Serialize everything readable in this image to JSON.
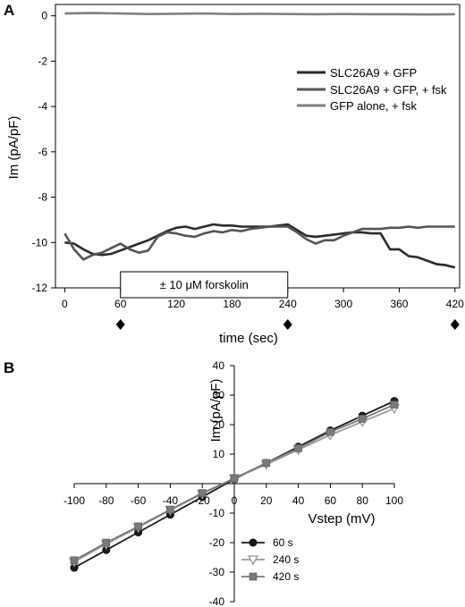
{
  "chart_data": [
    {
      "panel_label": "A",
      "type": "line",
      "xlabel": "time (sec)",
      "ylabel": "Im (pA/pF)",
      "xlim": [
        -10,
        425
      ],
      "ylim": [
        -12,
        0.5
      ],
      "xticks": [
        0,
        60,
        120,
        180,
        240,
        300,
        360,
        420
      ],
      "xtick_labels": [
        "0",
        "60",
        "120",
        "180",
        "240",
        "300",
        "360",
        "420"
      ],
      "yticks": [
        0,
        -2,
        -4,
        -6,
        -8,
        -10,
        -12
      ],
      "ytick_labels": [
        "0",
        "-2",
        "-4",
        "-6",
        "-8",
        "-10",
        "-12"
      ],
      "marker_times": [
        60,
        240,
        420
      ],
      "forskolin_bar": {
        "label": "± 10 μM forskolin",
        "x_start": 60,
        "x_end": 240
      },
      "legend_position": "right",
      "series": [
        {
          "name": "SLC26A9 + GFP",
          "color": "#2b2b2b",
          "x": [
            0,
            10,
            20,
            30,
            40,
            50,
            60,
            70,
            80,
            90,
            100,
            110,
            120,
            130,
            140,
            150,
            160,
            170,
            180,
            190,
            200,
            210,
            220,
            230,
            240,
            250,
            260,
            270,
            280,
            290,
            300,
            310,
            320,
            330,
            340,
            350,
            360,
            370,
            380,
            390,
            400,
            410,
            420
          ],
          "y": [
            -10.0,
            -10.05,
            -10.3,
            -10.5,
            -10.55,
            -10.5,
            -10.35,
            -10.2,
            -10.05,
            -9.9,
            -9.7,
            -9.5,
            -9.35,
            -9.3,
            -9.4,
            -9.3,
            -9.2,
            -9.25,
            -9.25,
            -9.3,
            -9.3,
            -9.3,
            -9.3,
            -9.25,
            -9.2,
            -9.45,
            -9.7,
            -9.75,
            -9.7,
            -9.65,
            -9.6,
            -9.55,
            -9.55,
            -9.6,
            -9.6,
            -10.3,
            -10.3,
            -10.6,
            -10.65,
            -10.8,
            -10.95,
            -11.0,
            -11.1
          ]
        },
        {
          "name": "SLC26A9 + GFP, + fsk",
          "color": "#555555",
          "x": [
            0,
            10,
            20,
            30,
            40,
            50,
            60,
            70,
            80,
            90,
            100,
            110,
            120,
            130,
            140,
            150,
            160,
            170,
            180,
            190,
            200,
            210,
            220,
            230,
            240,
            250,
            260,
            270,
            280,
            290,
            300,
            310,
            320,
            330,
            340,
            350,
            360,
            370,
            380,
            390,
            400,
            410,
            420
          ],
          "y": [
            -9.6,
            -10.3,
            -10.75,
            -10.55,
            -10.45,
            -10.25,
            -10.05,
            -10.3,
            -10.45,
            -10.35,
            -9.75,
            -9.55,
            -9.6,
            -9.7,
            -9.75,
            -9.6,
            -9.5,
            -9.55,
            -9.45,
            -9.5,
            -9.4,
            -9.35,
            -9.3,
            -9.3,
            -9.3,
            -9.55,
            -9.85,
            -10.05,
            -9.9,
            -9.9,
            -9.7,
            -9.55,
            -9.4,
            -9.4,
            -9.4,
            -9.35,
            -9.35,
            -9.3,
            -9.35,
            -9.3,
            -9.3,
            -9.3,
            -9.3
          ]
        },
        {
          "name": "GFP alone, + fsk",
          "color": "#808080",
          "x": [
            0,
            30,
            60,
            90,
            120,
            150,
            180,
            210,
            240,
            270,
            300,
            330,
            360,
            390,
            420
          ],
          "y": [
            0.1,
            0.12,
            0.1,
            0.08,
            0.09,
            0.1,
            0.08,
            0.09,
            0.08,
            0.07,
            0.08,
            0.07,
            0.07,
            0.06,
            0.07
          ]
        }
      ]
    },
    {
      "panel_label": "B",
      "type": "line",
      "xlabel": "Vstep (mV)",
      "ylabel": "Im (pA/pF)",
      "xlim": [
        -100,
        100
      ],
      "ylim": [
        -40,
        40
      ],
      "xticks": [
        -100,
        -80,
        -60,
        -40,
        -20,
        0,
        20,
        40,
        60,
        80,
        100
      ],
      "xtick_labels": [
        "-100",
        "-80",
        "-60",
        "-40",
        "-20",
        "0",
        "20",
        "40",
        "60",
        "80",
        "100"
      ],
      "yticks": [
        -40,
        -30,
        -20,
        -10,
        0,
        10,
        20,
        30,
        40
      ],
      "ytick_labels": [
        "-40",
        "-30",
        "-20",
        "-10",
        "0",
        "10",
        "20",
        "30",
        "40"
      ],
      "legend_position": "bottom-left",
      "categories": [
        -100,
        -80,
        -60,
        -40,
        -20,
        0,
        20,
        40,
        60,
        80,
        100
      ],
      "series": [
        {
          "name": "60 s",
          "marker": "circle",
          "color": "#1a1a1a",
          "values": [
            -28.5,
            -22.5,
            -16.5,
            -10.5,
            -4.5,
            1.5,
            7.0,
            12.5,
            18.0,
            23.0,
            28.0
          ]
        },
        {
          "name": "240 s",
          "marker": "triangle-down",
          "color": "#9a9a9a",
          "values": [
            -26.5,
            -20.5,
            -14.8,
            -9.0,
            -3.5,
            1.8,
            6.5,
            11.5,
            16.5,
            21.0,
            25.5
          ]
        },
        {
          "name": "420 s",
          "marker": "square",
          "color": "#7a7a7a",
          "values": [
            -26.0,
            -20.0,
            -14.5,
            -8.8,
            -3.2,
            1.8,
            7.0,
            12.0,
            17.5,
            22.0,
            26.8
          ]
        }
      ]
    }
  ]
}
